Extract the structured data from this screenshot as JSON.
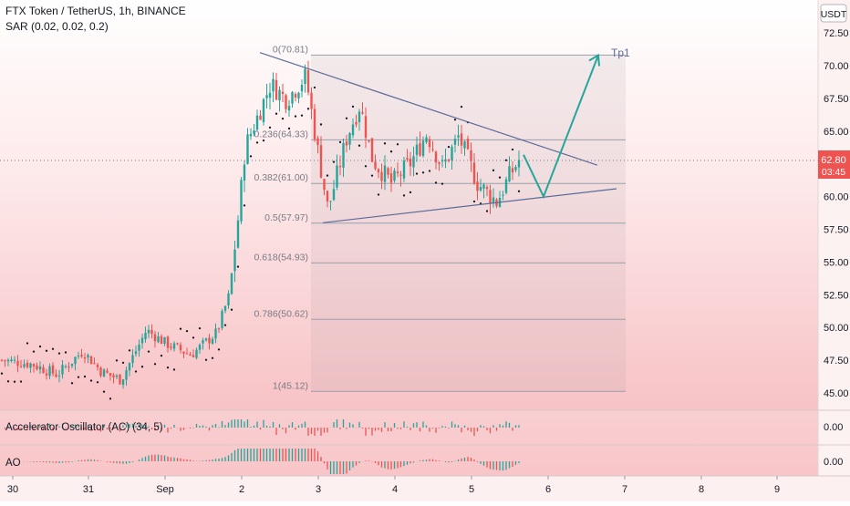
{
  "header": {
    "symbol_title": "FTX Token / TetherUS, 1h, BINANCE",
    "sar_label": "SAR (0.02, 0.02, 0.2)",
    "currency": "USDT"
  },
  "price_tag": {
    "value": "62.80",
    "countdown": "03:45"
  },
  "colors": {
    "up": "#26a69a",
    "down": "#ef5350",
    "background_top": "#ffffff",
    "background_bottom": "#f8c9cb",
    "trendline": "#5d6b9a",
    "projection_arrow": "#26a69a",
    "sar_dots": "#131722",
    "fib_lines": "#9aa0ab"
  },
  "annotation": {
    "target_label": "Tp1"
  },
  "chart_data": {
    "type": "candlestick",
    "title": "FTX Token / TetherUS, 1h, BINANCE",
    "y_axis": {
      "ticks": [
        "72.50",
        "70.00",
        "67.50",
        "65.00",
        "62.50",
        "60.00",
        "57.50",
        "55.00",
        "52.50",
        "50.00",
        "47.50",
        "45.00"
      ],
      "ylim": [
        44.0,
        74.0
      ]
    },
    "x_axis": {
      "ticks": [
        "30",
        "31",
        "Sep",
        "2",
        "3",
        "4",
        "5",
        "6",
        "7",
        "8",
        "9"
      ]
    },
    "last_price": 62.8,
    "fib_retracement": [
      {
        "label": "0(70.81)",
        "value": 70.81
      },
      {
        "label": "0.236(64.33)",
        "value": 64.33
      },
      {
        "label": "0.382(61.00)",
        "value": 61.0
      },
      {
        "label": "0.5(57.97)",
        "value": 57.97
      },
      {
        "label": "0.618(54.93)",
        "value": 54.93
      },
      {
        "label": "0.786(50.62)",
        "value": 50.62
      },
      {
        "label": "1(45.12)",
        "value": 45.12
      }
    ],
    "triangle": {
      "upper_line": [
        {
          "x": "Sep 2 02:00",
          "y": 71.0
        },
        {
          "x": "Sep 6 12:00",
          "y": 62.4
        }
      ],
      "lower_line": [
        {
          "x": "Sep 3 02:00",
          "y": 58.0
        },
        {
          "x": "Sep 6 20:00",
          "y": 60.6
        }
      ]
    },
    "projection": [
      {
        "x": "Sep 5 15:00",
        "y": 63.2
      },
      {
        "x": "Sep 5 23:00",
        "y": 60.0
      },
      {
        "x": "Sep 6 18:00",
        "y": 70.8
      }
    ],
    "price_path": [
      {
        "x": "Aug 29 18:00",
        "y": 47.6
      },
      {
        "x": "Aug 30 06:00",
        "y": 47.2
      },
      {
        "x": "Aug 30 14:00",
        "y": 46.4
      },
      {
        "x": "Aug 30 22:00",
        "y": 48.2
      },
      {
        "x": "Aug 31 04:00",
        "y": 46.6
      },
      {
        "x": "Aug 31 10:00",
        "y": 46.0
      },
      {
        "x": "Aug 31 18:00",
        "y": 49.8
      },
      {
        "x": "Sep 1 00:00",
        "y": 48.8
      },
      {
        "x": "Sep 1 08:00",
        "y": 47.9
      },
      {
        "x": "Sep 1 16:00",
        "y": 49.6
      },
      {
        "x": "Sep 1 20:00",
        "y": 52.5
      },
      {
        "x": "Sep 1 23:00",
        "y": 58.8
      },
      {
        "x": "Sep 2 01:00",
        "y": 63.8
      },
      {
        "x": "Sep 2 05:00",
        "y": 66.2
      },
      {
        "x": "Sep 2 09:00",
        "y": 68.6
      },
      {
        "x": "Sep 2 14:00",
        "y": 67.4
      },
      {
        "x": "Sep 2 20:00",
        "y": 69.2
      },
      {
        "x": "Sep 3 00:00",
        "y": 63.2
      },
      {
        "x": "Sep 3 03:00",
        "y": 59.0
      },
      {
        "x": "Sep 3 09:00",
        "y": 64.6
      },
      {
        "x": "Sep 3 13:00",
        "y": 67.0
      },
      {
        "x": "Sep 3 17:00",
        "y": 62.8
      },
      {
        "x": "Sep 3 23:00",
        "y": 61.0
      },
      {
        "x": "Sep 4 05:00",
        "y": 62.6
      },
      {
        "x": "Sep 4 10:00",
        "y": 64.8
      },
      {
        "x": "Sep 4 15:00",
        "y": 62.2
      },
      {
        "x": "Sep 4 20:00",
        "y": 64.6
      },
      {
        "x": "Sep 5 02:00",
        "y": 61.0
      },
      {
        "x": "Sep 5 08:00",
        "y": 59.6
      },
      {
        "x": "Sep 5 12:00",
        "y": 61.6
      },
      {
        "x": "Sep 5 15:00",
        "y": 62.8
      }
    ]
  },
  "indicators": [
    {
      "name": "Accelerator Oscillator (AC) (34, 5)",
      "value": "0.00"
    },
    {
      "name": "AO",
      "value": "0.00"
    }
  ]
}
